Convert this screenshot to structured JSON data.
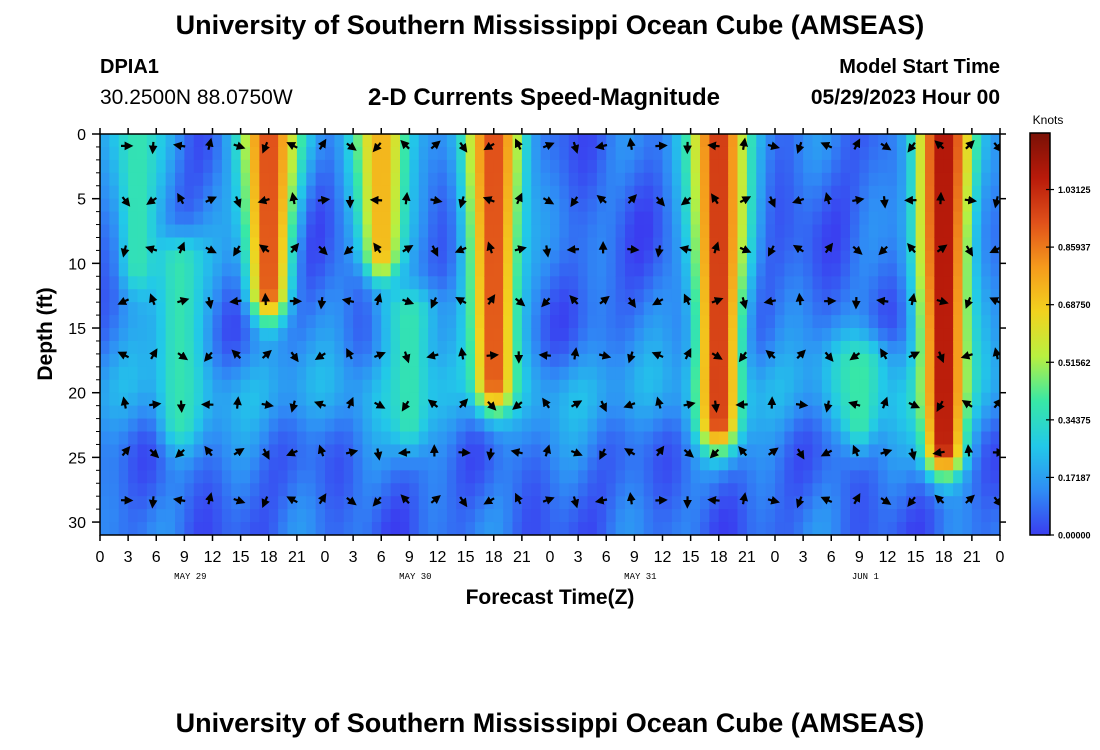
{
  "header": {
    "main_title": "University of Southern Mississippi Ocean Cube (AMSEAS)",
    "station_id": "DPIA1",
    "station_coords": "30.2500N  88.0750W",
    "subtitle": "2-D Currents Speed-Magnitude",
    "model_start_label": "Model Start Time",
    "model_start_value": "05/29/2023 Hour 00"
  },
  "footer": {
    "repeated_title": "University of Southern Mississippi Ocean Cube (AMSEAS)"
  },
  "chart_data": {
    "type": "heatmap",
    "title": "2-D Currents Speed-Magnitude",
    "xlabel": "Forecast Time(Z)",
    "ylabel": "Depth (ft)",
    "x_ticks": [
      "0",
      "3",
      "6",
      "9",
      "12",
      "15",
      "18",
      "21",
      "0",
      "3",
      "6",
      "9",
      "12",
      "15",
      "18",
      "21",
      "0",
      "3",
      "6",
      "9",
      "12",
      "15",
      "18",
      "21",
      "0",
      "3",
      "6",
      "9",
      "12",
      "15",
      "18",
      "21",
      "0"
    ],
    "x_hours": [
      0,
      3,
      6,
      9,
      12,
      15,
      18,
      21,
      24,
      27,
      30,
      33,
      36,
      39,
      42,
      45,
      48,
      51,
      54,
      57,
      60,
      63,
      66,
      69,
      72,
      75,
      78,
      81,
      84,
      87,
      90,
      93,
      96
    ],
    "date_labels": [
      {
        "label": "MAY 29",
        "hour": 9
      },
      {
        "label": "MAY 30",
        "hour": 33
      },
      {
        "label": "MAY 31",
        "hour": 57
      },
      {
        "label": "JUN 1",
        "hour": 81
      }
    ],
    "xlim": [
      0,
      96
    ],
    "y_ticks": [
      "0",
      "5",
      "10",
      "15",
      "20",
      "25",
      "30"
    ],
    "y_values": [
      0,
      5,
      10,
      15,
      20,
      25,
      30
    ],
    "ylim": [
      0,
      31
    ],
    "colorbar": {
      "unit": "Knots",
      "min": 0.0,
      "max": 1.2,
      "tick_values": [
        0.0,
        0.17187,
        0.34375,
        0.51562,
        0.6875,
        0.85937,
        1.03125
      ],
      "tick_labels": [
        "0.00000",
        "0.17187",
        "0.34375",
        "0.51562",
        "0.68750",
        "0.85937",
        "1.03125"
      ],
      "colors": [
        "#3a3df0",
        "#2f8df5",
        "#22c9e8",
        "#38e8a6",
        "#b8f040",
        "#f2d21e",
        "#f59a1c",
        "#e0501a",
        "#b81a0a",
        "#7a1106"
      ]
    },
    "arrow_depths": [
      0.3,
      4.5,
      8.3,
      12.3,
      16.5,
      20.3,
      24.0,
      27.7
    ],
    "speed_features": [
      {
        "hour": 4,
        "depth_top": 0,
        "depth_bottom": 10,
        "speed": 0.38
      },
      {
        "hour": 18,
        "depth_top": 0,
        "depth_bottom": 12,
        "speed": 0.95
      },
      {
        "hour": 30,
        "depth_top": 0,
        "depth_bottom": 9,
        "speed": 0.75
      },
      {
        "hour": 42,
        "depth_top": 0,
        "depth_bottom": 19,
        "speed": 0.95
      },
      {
        "hour": 66,
        "depth_top": 0,
        "depth_bottom": 22,
        "speed": 1.0
      },
      {
        "hour": 90,
        "depth_top": 0,
        "depth_bottom": 24,
        "speed": 1.1
      },
      {
        "hour": 8.5,
        "depth_top": 10,
        "depth_bottom": 22,
        "speed": 0.38
      },
      {
        "hour": 33,
        "depth_top": 14,
        "depth_bottom": 22,
        "speed": 0.38
      },
      {
        "hour": 81,
        "depth_top": 18,
        "depth_bottom": 22,
        "speed": 0.4
      }
    ]
  }
}
